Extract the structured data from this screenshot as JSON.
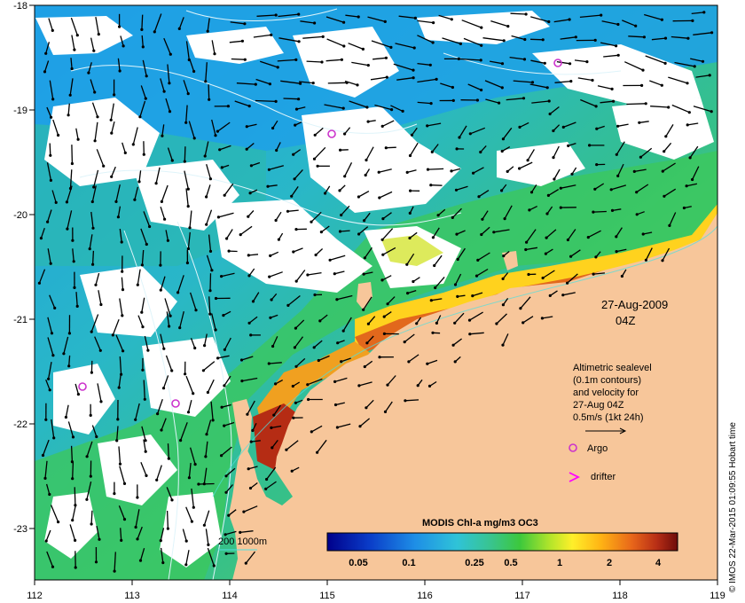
{
  "map": {
    "date_line1": "27-Aug-2009",
    "date_line2": "04Z",
    "lon_ticks": [
      "112",
      "113",
      "114",
      "115",
      "116",
      "117",
      "118",
      "119"
    ],
    "lat_ticks": [
      "-18",
      "-19",
      "-20",
      "-21",
      "-22",
      "-23"
    ],
    "copyright": "© IMOS 22-Mar-2015 01:09:55 Hobart time"
  },
  "legend": {
    "lines": [
      "Altimetric sealevel",
      "(0.1m contours)",
      "and velocity for",
      "27-Aug 04Z",
      "0.5m/s (1kt 24h)"
    ],
    "argo_label": "Argo",
    "drifter_label": "drifter"
  },
  "depth_key": {
    "label": "200  1000m"
  },
  "colorbar": {
    "title": "MODIS Chl-a mg/m3 OC3",
    "ticks": [
      "0.05",
      "0.1",
      "0.25",
      "0.5",
      "1",
      "2",
      "4"
    ]
  },
  "colors": {
    "land": "#f7c69a",
    "cloud": "#ffffff",
    "argo": "#cc33cc",
    "drifter": "#ff00ff",
    "contour": "#d8f0f8"
  }
}
